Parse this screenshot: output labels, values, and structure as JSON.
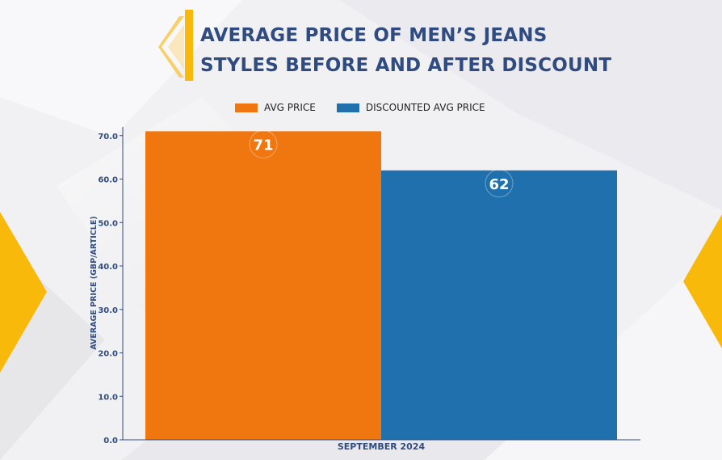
{
  "title": "AVERAGE PRICE OF MEN’S JEANS STYLES BEFORE AND AFTER DISCOUNT",
  "title_lines": [
    "AVERAGE PRICE OF MEN’S JEANS",
    "STYLES BEFORE AND AFTER DISCOUNT"
  ],
  "colors": {
    "avg": "#f0770f",
    "discounted": "#1f70ad",
    "title": "#2f4b80",
    "accent": "#f9b90b"
  },
  "legend": [
    {
      "label": "AVG PRICE",
      "color": "#f0770f"
    },
    {
      "label": "DISCOUNTED AVG PRICE",
      "color": "#1f70ad"
    }
  ],
  "chart_data": {
    "type": "bar",
    "categories": [
      "SEPTEMBER 2024"
    ],
    "series": [
      {
        "name": "AVG PRICE",
        "values": [
          71
        ]
      },
      {
        "name": "DISCOUNTED AVG PRICE",
        "values": [
          62
        ]
      }
    ],
    "xlabel": "SEPTEMBER 2024",
    "ylabel": "AVERAGE PRICE (GBP/ARTICLE)",
    "ylim": [
      0,
      72
    ],
    "yticks": [
      0,
      10,
      20,
      30,
      40,
      50,
      60,
      70
    ],
    "ytick_labels": [
      "0.0",
      "10.0",
      "20.0",
      "30.0",
      "40.0",
      "50.0",
      "60.0",
      "70.0"
    ],
    "legend_position": "top-center",
    "grid": false
  }
}
